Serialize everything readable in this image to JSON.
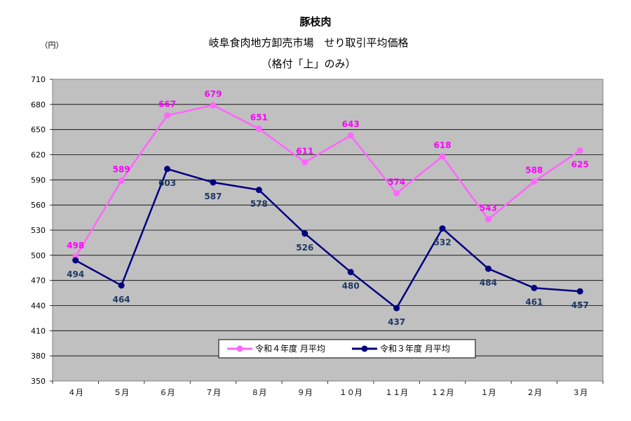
{
  "chart_data": {
    "type": "line",
    "title": "豚枝肉",
    "subtitle": "岐阜食肉地方卸売市場　せり取引平均価格",
    "subtitle2": "（格付「上」のみ）",
    "unit_label": "（円）",
    "categories": [
      "４月",
      "５月",
      "６月",
      "７月",
      "８月",
      "９月",
      "１０月",
      "１１月",
      "１２月",
      "１月",
      "２月",
      "３月"
    ],
    "ylim": [
      350,
      710
    ],
    "yticks": [
      "710",
      "680",
      "650",
      "620",
      "590",
      "560",
      "530",
      "500",
      "470",
      "440",
      "410",
      "380",
      "350"
    ],
    "grid": true,
    "legend_position": "bottom-right",
    "series": [
      {
        "name": "令和４年度 月平均",
        "color": "#FF66FF",
        "values": [
          498,
          589,
          667,
          679,
          651,
          611,
          643,
          574,
          618,
          543,
          588,
          625
        ]
      },
      {
        "name": "令和３年度 月平均",
        "color": "#000080",
        "values": [
          494,
          464,
          603,
          587,
          578,
          526,
          480,
          437,
          532,
          484,
          461,
          457
        ]
      }
    ]
  },
  "colors": {
    "plot_background": "#C0C0C0",
    "series_a_label": "#FF00FF",
    "series_b_label": "#1F3864"
  }
}
